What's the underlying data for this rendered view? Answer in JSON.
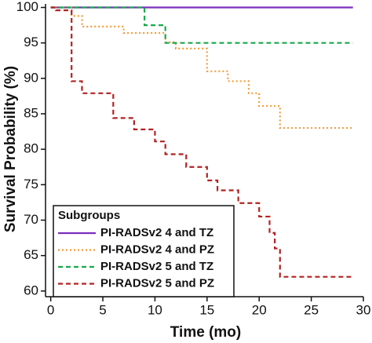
{
  "chart_data": {
    "type": "step",
    "x_label": "Time (mo)",
    "y_label": "Survival Probability (%)",
    "xlim": [
      -0.5,
      30
    ],
    "ylim": [
      59.2,
      100.5
    ],
    "xticks": [
      0,
      5,
      10,
      15,
      20,
      25,
      30
    ],
    "yticks": [
      60,
      65,
      70,
      75,
      80,
      85,
      90,
      95,
      100
    ],
    "legend_title": "Subgroups",
    "legend_position": "lower left",
    "series": [
      {
        "name": "PI-RADSv2 4 and TZ",
        "color": "#7b2fbe",
        "dash": "solid",
        "x": [
          0,
          29
        ],
        "values": [
          100,
          100
        ]
      },
      {
        "name": "PI-RADSv2 4 and PZ",
        "color": "#f39c3a",
        "dash": "dotted",
        "x": [
          0,
          2,
          3,
          7,
          11,
          12,
          15,
          17,
          19,
          20,
          22,
          29
        ],
        "values": [
          100,
          98.8,
          97.3,
          96.4,
          95.1,
          94.2,
          91,
          89.6,
          87.9,
          86.1,
          83,
          83
        ]
      },
      {
        "name": "PI-RADSv2 5 and TZ",
        "color": "#19a84b",
        "dash": "dashed",
        "x": [
          0,
          9,
          11,
          29
        ],
        "values": [
          100,
          97.5,
          95,
          95
        ]
      },
      {
        "name": "PI-RADSv2 5 and PZ",
        "color": "#b22222",
        "dash": "dashed",
        "x": [
          0,
          0.5,
          2,
          3,
          6,
          8,
          10,
          11,
          13,
          15,
          16,
          18,
          20,
          21,
          21.5,
          22,
          29
        ],
        "values": [
          100,
          99.6,
          89.6,
          87.9,
          84.4,
          82.8,
          81.1,
          79.3,
          77.5,
          75.6,
          74.2,
          72.4,
          70.5,
          68.2,
          66,
          62,
          62
        ]
      }
    ]
  }
}
